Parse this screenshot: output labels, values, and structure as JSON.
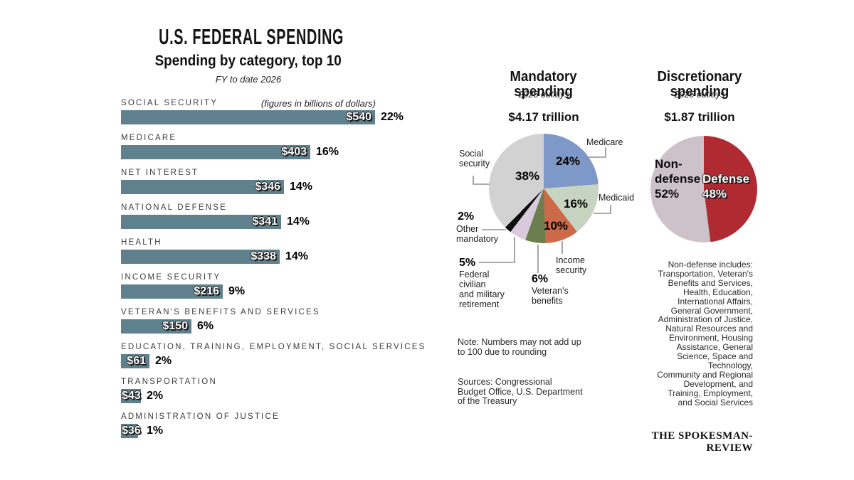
{
  "page": {
    "background": "#ffffff"
  },
  "main_title": "U.S. FEDERAL SPENDING",
  "chart_data": [
    {
      "type": "bar",
      "title": "Spending by category, top 10",
      "subtitle": "FY to date 2026",
      "units_note": "(figures in billions of dollars)",
      "orientation": "horizontal",
      "bar_color": "#5e818d",
      "xmax": 540,
      "categories": [
        "SOCIAL SECURITY",
        "MEDICARE",
        "NET INTEREST",
        "NATIONAL DEFENSE",
        "HEALTH",
        "INCOME SECURITY",
        "VETERAN'S BENEFITS AND SERVICES",
        "EDUCATION, TRAINING, EMPLOYMENT, SOCIAL SERVICES",
        "TRANSPORTATION",
        "ADMINISTRATION OF JUSTICE"
      ],
      "values": [
        540,
        403,
        346,
        341,
        338,
        216,
        150,
        61,
        43,
        36
      ],
      "value_labels": [
        "$540",
        "$403",
        "$346",
        "$341",
        "$338",
        "$216",
        "$150",
        "$61",
        "$43",
        "$36"
      ],
      "pct_labels": [
        "22%",
        "16%",
        "14%",
        "14%",
        "14%",
        "9%",
        "6%",
        "2%",
        "2%",
        "1%"
      ]
    },
    {
      "type": "pie",
      "title": "Mandatory\nspending",
      "subtitle": "2025 outlays",
      "total_label": "$4.17 trillion",
      "start_angle_deg": 0,
      "direction": "clockwise",
      "slices": [
        {
          "label": "Medicare",
          "pct": 24,
          "pct_label": "24%",
          "color": "#7e99c7"
        },
        {
          "label": "Medicaid",
          "pct": 16,
          "pct_label": "16%",
          "color": "#c8d4c2"
        },
        {
          "label": "Income\nsecurity",
          "pct": 10,
          "pct_label": "10%",
          "color": "#cb6948"
        },
        {
          "label": "Veteran's\nbenefits",
          "pct": 6,
          "pct_label": "6%",
          "color": "#6d7e4e"
        },
        {
          "label": "Federal\ncivilian\nand military\nretirement",
          "pct": 5,
          "pct_label": "5%",
          "color": "#d8cadb"
        },
        {
          "label": "Other\nmandatory",
          "pct": 2,
          "pct_label": "2%",
          "color": "#0b0b0b"
        },
        {
          "label": "Social\nsecurity",
          "pct": 38,
          "pct_label": "38%",
          "color": "#d2d2d3"
        }
      ]
    },
    {
      "type": "pie",
      "title": "Discretionary\nspending",
      "subtitle": "2025 outlays",
      "total_label": "$1.87 trillion",
      "start_angle_deg": 0,
      "direction": "clockwise",
      "slices": [
        {
          "label": "Defense",
          "pct": 48,
          "pct_label": "48%",
          "color": "#b02a31"
        },
        {
          "label": "Non-\ndefense",
          "pct": 52,
          "pct_label": "52%",
          "color": "#cdc2ca"
        }
      ],
      "footnote": "Non-defense includes:\nTransportation, Veteran's\nBenefits and Services,\nHealth, Education,\nInternational Affairs,\nGeneral Government,\nAdministration of Justice,\nNatural Resources and\nEnvironment, Housing\nAssistance, General\nScience, Space and\nTechnology,\nCommunity and Regional\nDevelopment, and\nTraining, Employment,\nand Social Services"
    }
  ],
  "note": "Note: Numbers may not add up\nto 100 due to rounding",
  "sources": "Sources: Congressional\nBudget Office, U.S. Department\nof the Treasury",
  "attribution": "THE SPOKESMAN-REVIEW"
}
